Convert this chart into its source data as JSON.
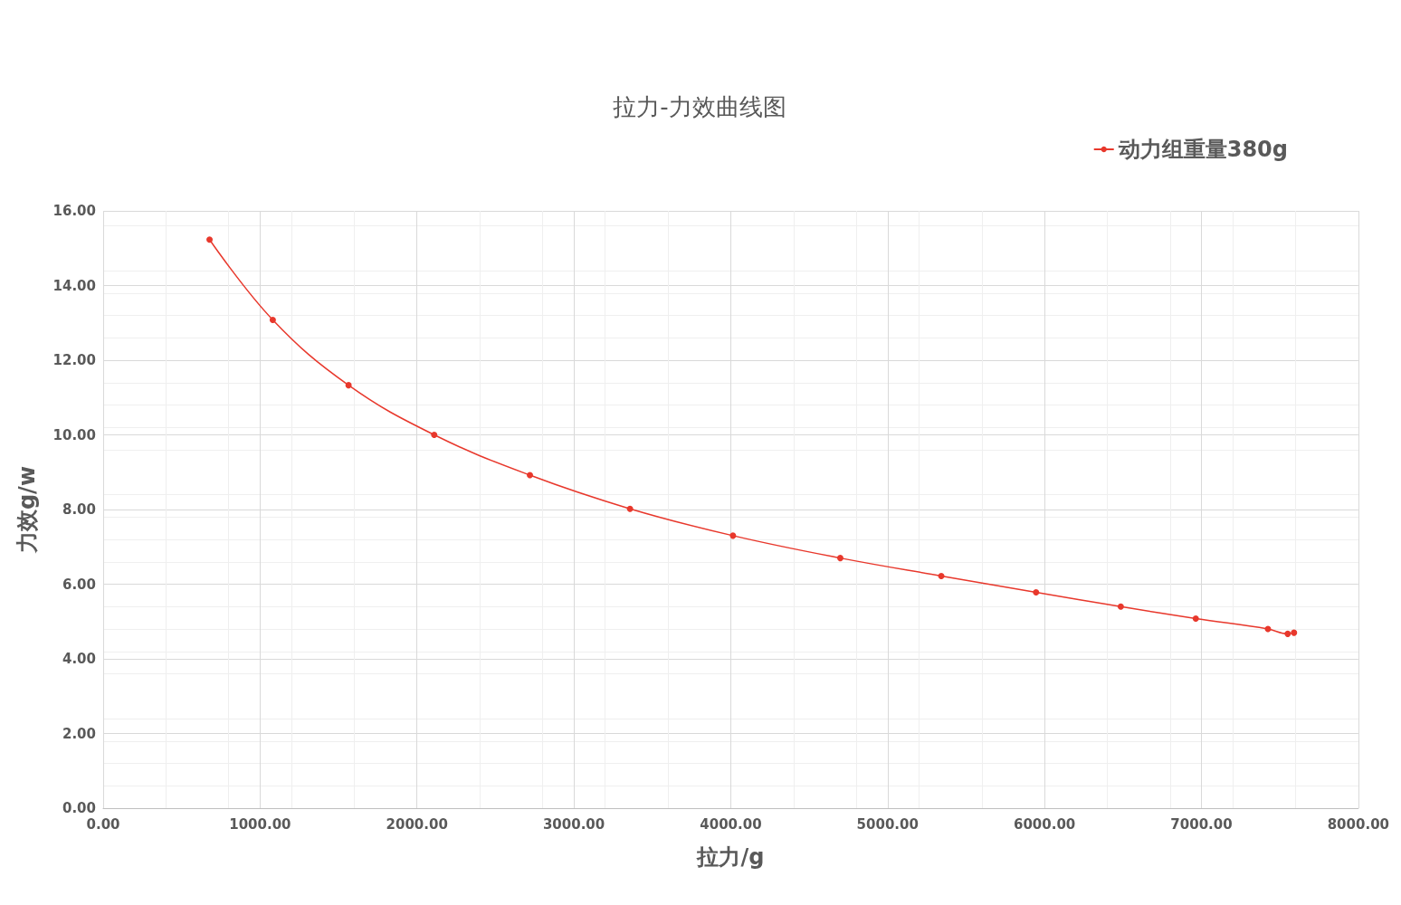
{
  "chart_data": {
    "type": "line",
    "title": "拉力-力效曲线图",
    "xlabel": "拉力/g",
    "ylabel": "力效g/w",
    "x": [
      678,
      1081,
      1564,
      2110,
      2720,
      3358,
      4014,
      4698,
      5342,
      5946,
      6486,
      6964,
      7424,
      7550,
      7590
    ],
    "series": [
      {
        "name": "动力组重量380g",
        "color": "#e8382c",
        "values": [
          15.23,
          13.08,
          11.33,
          10.0,
          8.92,
          8.02,
          7.3,
          6.7,
          6.22,
          5.78,
          5.4,
          5.08,
          4.8,
          4.67,
          4.7
        ]
      }
    ],
    "xlim": [
      0,
      8000
    ],
    "xticks": [
      {
        "value": 0,
        "label": "0.00"
      },
      {
        "value": 1000,
        "label": "1000.00"
      },
      {
        "value": 2000,
        "label": "2000.00"
      },
      {
        "value": 3000,
        "label": "3000.00"
      },
      {
        "value": 4000,
        "label": "4000.00"
      },
      {
        "value": 5000,
        "label": "5000.00"
      },
      {
        "value": 6000,
        "label": "6000.00"
      },
      {
        "value": 7000,
        "label": "7000.00"
      },
      {
        "value": 8000,
        "label": "8000.00"
      }
    ],
    "ylim": [
      0,
      16
    ],
    "yticks": [
      {
        "value": 0,
        "label": "0.00"
      },
      {
        "value": 2,
        "label": "2.00"
      },
      {
        "value": 4,
        "label": "4.00"
      },
      {
        "value": 6,
        "label": "6.00"
      },
      {
        "value": 8,
        "label": "8.00"
      },
      {
        "value": 10,
        "label": "10.00"
      },
      {
        "value": 12,
        "label": "12.00"
      },
      {
        "value": 14,
        "label": "14.00"
      },
      {
        "value": 16,
        "label": "16.00"
      }
    ],
    "grid": true,
    "legend": "top right",
    "marker": "circle",
    "line_style": "solid"
  }
}
